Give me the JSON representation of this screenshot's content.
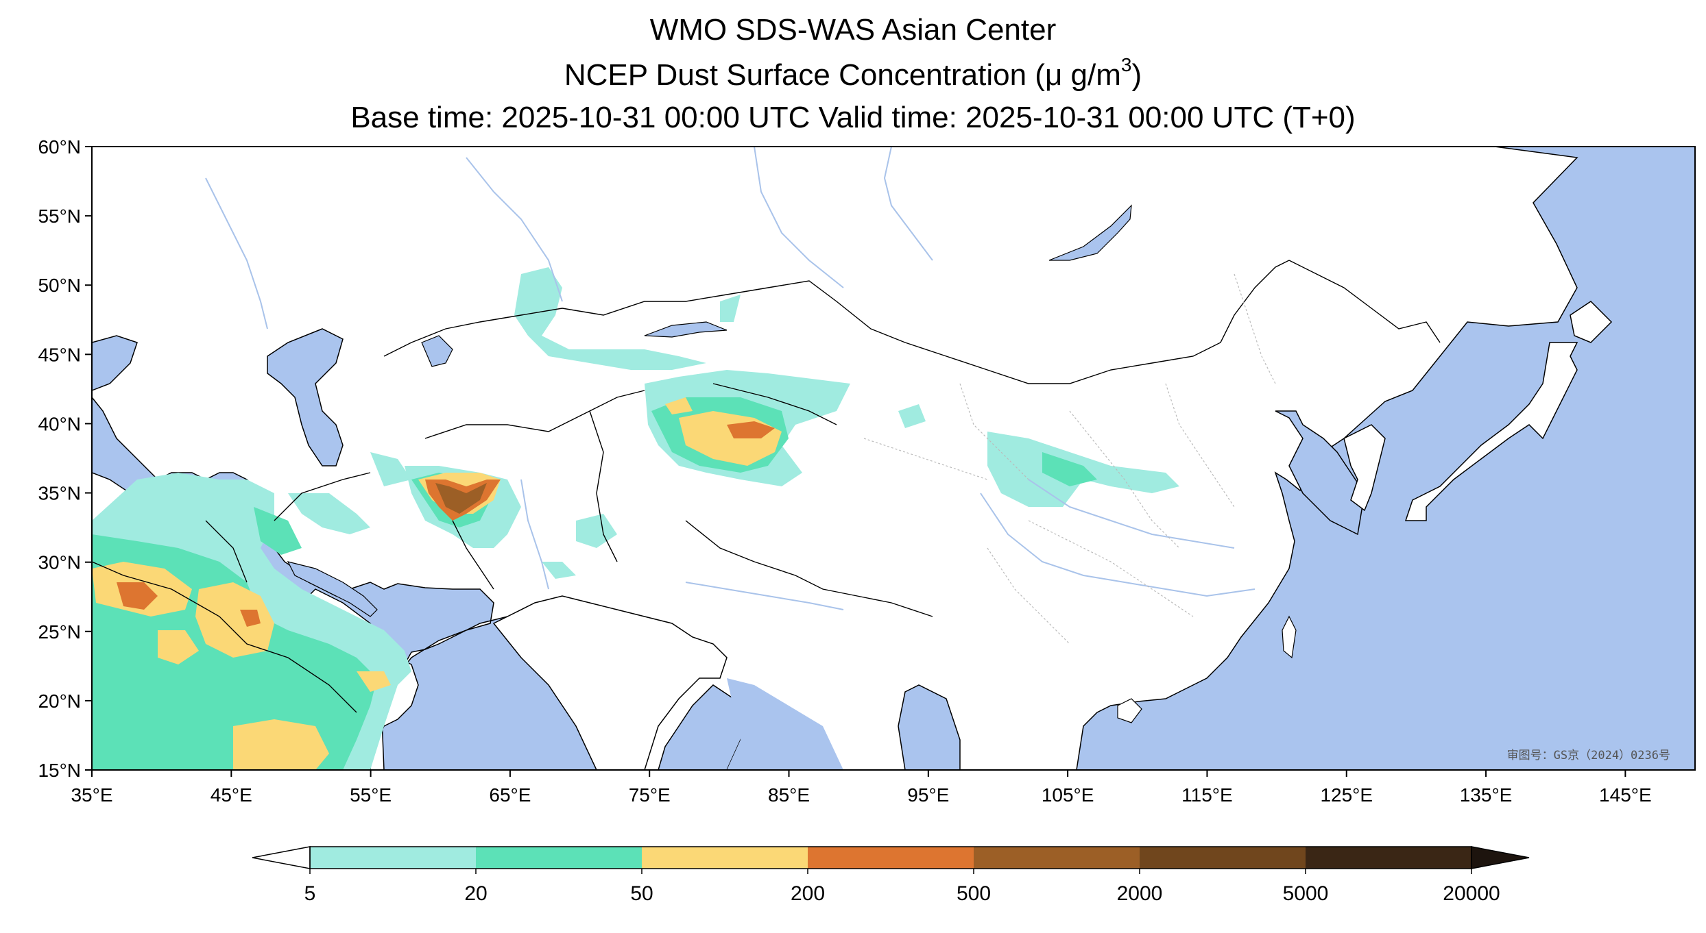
{
  "title": {
    "line1": "WMO SDS-WAS Asian Center",
    "line2_prefix": "NCEP Dust Surface Concentration (",
    "line2_unit_base": "μ g/m",
    "line2_unit_sup": "3",
    "line2_suffix": ")",
    "line3": "Base time: 2025-10-31 00:00 UTC Valid time: 2025-10-31 00:00 UTC (T+0)"
  },
  "map": {
    "lon_range": [
      35,
      150
    ],
    "lat_range": [
      15,
      60
    ],
    "lon_ticks": [
      {
        "value": 35,
        "label": "35°E"
      },
      {
        "value": 45,
        "label": "45°E"
      },
      {
        "value": 55,
        "label": "55°E"
      },
      {
        "value": 65,
        "label": "65°E"
      },
      {
        "value": 75,
        "label": "75°E"
      },
      {
        "value": 85,
        "label": "85°E"
      },
      {
        "value": 95,
        "label": "95°E"
      },
      {
        "value": 105,
        "label": "105°E"
      },
      {
        "value": 115,
        "label": "115°E"
      },
      {
        "value": 125,
        "label": "125°E"
      },
      {
        "value": 135,
        "label": "135°E"
      },
      {
        "value": 145,
        "label": "145°E"
      }
    ],
    "lat_ticks": [
      {
        "value": 60,
        "label": "60°N"
      },
      {
        "value": 55,
        "label": "55°N"
      },
      {
        "value": 50,
        "label": "50°N"
      },
      {
        "value": 45,
        "label": "45°N"
      },
      {
        "value": 40,
        "label": "40°N"
      },
      {
        "value": 35,
        "label": "35°N"
      },
      {
        "value": 30,
        "label": "30°N"
      },
      {
        "value": 25,
        "label": "25°N"
      },
      {
        "value": 20,
        "label": "20°N"
      },
      {
        "value": 15,
        "label": "15°N"
      }
    ],
    "approval_text": "审图号：GS京（2024）0236号",
    "ocean_color": "#aac4ee",
    "land_color": "#ffffff",
    "river_color": "#a9c3ea"
  },
  "colorbar": {
    "levels": [
      {
        "label": "5",
        "color": "#a0ebe0"
      },
      {
        "label": "20",
        "color": "#5ce1b7"
      },
      {
        "label": "50",
        "color": "#fbd876"
      },
      {
        "label": "200",
        "color": "#dd7530"
      },
      {
        "label": "500",
        "color": "#9c5f26"
      },
      {
        "label": "2000",
        "color": "#70461d"
      },
      {
        "label": "5000",
        "color": "#3a2615"
      },
      {
        "label": "20000",
        "color": "#1d140e"
      }
    ],
    "under_color": "#ffffff",
    "over_color": "#1d140e"
  }
}
